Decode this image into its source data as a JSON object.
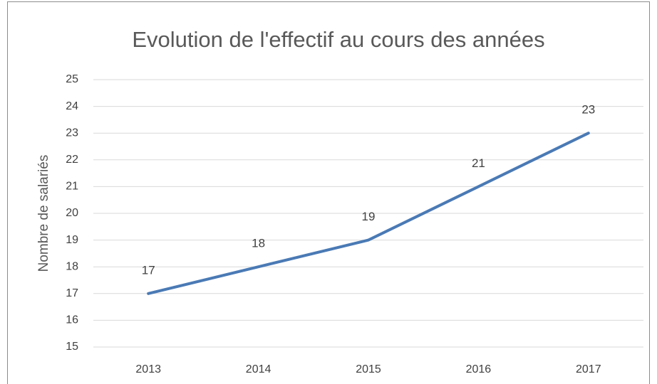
{
  "chart_data": {
    "type": "line",
    "title": "Evolution de l'effectif au cours des années",
    "y_label": "Nombre de salariés",
    "categories": [
      "2013",
      "2014",
      "2015",
      "2016",
      "2017"
    ],
    "series": [
      {
        "name": "Nombre de salariés",
        "color": "#4a7ab5",
        "values": [
          17,
          18,
          19,
          21,
          23
        ]
      }
    ],
    "ylim": [
      15,
      25
    ],
    "yticks": [
      15,
      16,
      17,
      18,
      19,
      20,
      21,
      22,
      23,
      24,
      25
    ],
    "grid": true,
    "data_labels": true
  }
}
